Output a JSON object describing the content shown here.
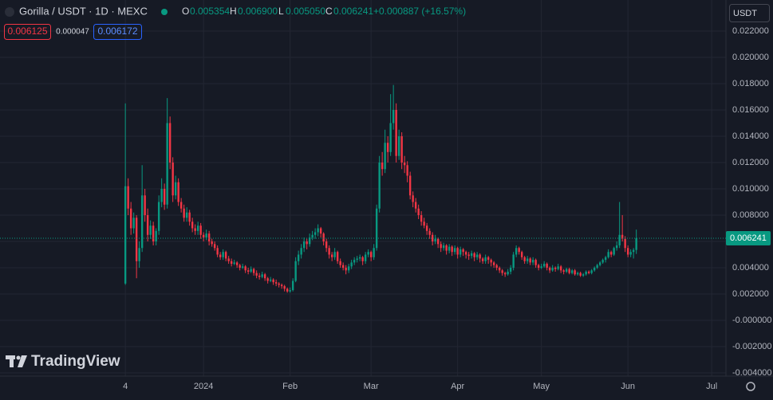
{
  "chart_data": {
    "type": "candlestick",
    "header": {
      "symbol": "Gorilla / USDT · 1D · MEXC",
      "o_label": "O",
      "o": "0.005354",
      "h_label": "H",
      "h": "0.006900",
      "l_label": "L",
      "l": "0.005050",
      "c_label": "C",
      "c": "0.006241",
      "change": "+0.000887 (+16.57%)"
    },
    "price_boxes": {
      "sell": "0.006125",
      "spread": "0.000047",
      "buy": "0.006172"
    },
    "currency": "USDT",
    "last_price_label": "0.006241",
    "branding": "TradingView",
    "colors": {
      "up": "#089981",
      "down": "#f23645"
    },
    "grid": true,
    "ylim": [
      -0.00424,
      0.02436
    ],
    "yticks": [
      {
        "value": 0.022,
        "label": "0.022000"
      },
      {
        "value": 0.02,
        "label": "0.020000"
      },
      {
        "value": 0.018,
        "label": "0.018000"
      },
      {
        "value": 0.016,
        "label": "0.016000"
      },
      {
        "value": 0.014,
        "label": "0.014000"
      },
      {
        "value": 0.012,
        "label": "0.012000"
      },
      {
        "value": 0.01,
        "label": "0.010000"
      },
      {
        "value": 0.008,
        "label": "0.008000"
      },
      {
        "value": 0.006,
        "label": "0.006000"
      },
      {
        "value": 0.004,
        "label": "0.004000"
      },
      {
        "value": 0.002,
        "label": "0.002000"
      },
      {
        "value": 0,
        "label": "-0.000000"
      },
      {
        "value": -0.002,
        "label": "-0.002000"
      },
      {
        "value": -0.004,
        "label": "-0.004000"
      }
    ],
    "xlim": [
      -44.9,
      215.1
    ],
    "xticks": [
      {
        "value": 0,
        "label": "4"
      },
      {
        "value": 28,
        "label": "2024"
      },
      {
        "value": 59,
        "label": "Feb"
      },
      {
        "value": 88,
        "label": "Mar"
      },
      {
        "value": 119,
        "label": "Apr"
      },
      {
        "value": 149,
        "label": "May"
      },
      {
        "value": 180,
        "label": "Jun"
      },
      {
        "value": 210,
        "label": "Jul"
      }
    ],
    "ohlc": [
      [
        0.0028,
        0.0165,
        0.0027,
        0.0102
      ],
      [
        0.0102,
        0.0108,
        0.008,
        0.0085
      ],
      [
        0.0085,
        0.009,
        0.0065,
        0.007
      ],
      [
        0.007,
        0.0082,
        0.0066,
        0.0078
      ],
      [
        0.0078,
        0.008,
        0.0032,
        0.0045
      ],
      [
        0.0045,
        0.006,
        0.004,
        0.0055
      ],
      [
        0.0055,
        0.0118,
        0.0052,
        0.0095
      ],
      [
        0.0095,
        0.01,
        0.0075,
        0.008
      ],
      [
        0.008,
        0.0085,
        0.006,
        0.0065
      ],
      [
        0.0065,
        0.0076,
        0.0062,
        0.0072
      ],
      [
        0.0072,
        0.0075,
        0.0057,
        0.006
      ],
      [
        0.006,
        0.007,
        0.0057,
        0.0068
      ],
      [
        0.0068,
        0.0095,
        0.0065,
        0.009
      ],
      [
        0.009,
        0.0108,
        0.0086,
        0.01
      ],
      [
        0.01,
        0.0104,
        0.0084,
        0.0088
      ],
      [
        0.0088,
        0.0169,
        0.0085,
        0.015
      ],
      [
        0.015,
        0.0155,
        0.0115,
        0.012
      ],
      [
        0.012,
        0.0124,
        0.009,
        0.0095
      ],
      [
        0.0095,
        0.011,
        0.0092,
        0.0105
      ],
      [
        0.0105,
        0.0108,
        0.0087,
        0.009
      ],
      [
        0.009,
        0.0093,
        0.0082,
        0.0085
      ],
      [
        0.0085,
        0.0088,
        0.0075,
        0.0078
      ],
      [
        0.0078,
        0.0086,
        0.0075,
        0.0082
      ],
      [
        0.0082,
        0.0084,
        0.0072,
        0.0075
      ],
      [
        0.0075,
        0.0078,
        0.0067,
        0.007
      ],
      [
        0.007,
        0.0073,
        0.0065,
        0.0068
      ],
      [
        0.0068,
        0.0075,
        0.0065,
        0.0072
      ],
      [
        0.0072,
        0.0074,
        0.0062,
        0.0065
      ],
      [
        0.0065,
        0.0067,
        0.006,
        0.0063
      ],
      [
        0.0063,
        0.0069,
        0.0061,
        0.0066
      ],
      [
        0.0066,
        0.0068,
        0.0057,
        0.006
      ],
      [
        0.006,
        0.0062,
        0.0056,
        0.0058
      ],
      [
        0.0058,
        0.006,
        0.0053,
        0.0055
      ],
      [
        0.0055,
        0.0057,
        0.0048,
        0.005
      ],
      [
        0.005,
        0.0052,
        0.0046,
        0.0048
      ],
      [
        0.0048,
        0.0054,
        0.0046,
        0.0052
      ],
      [
        0.0052,
        0.0053,
        0.0045,
        0.0047
      ],
      [
        0.0047,
        0.0049,
        0.0043,
        0.0045
      ],
      [
        0.0045,
        0.0047,
        0.0041,
        0.0043
      ],
      [
        0.0043,
        0.0046,
        0.0042,
        0.0044
      ],
      [
        0.0044,
        0.0045,
        0.004,
        0.0042
      ],
      [
        0.0042,
        0.0043,
        0.0038,
        0.004
      ],
      [
        0.004,
        0.0043,
        0.0039,
        0.0041
      ],
      [
        0.0041,
        0.0042,
        0.0036,
        0.0038
      ],
      [
        0.0038,
        0.004,
        0.0035,
        0.0037
      ],
      [
        0.0037,
        0.0041,
        0.0036,
        0.0039
      ],
      [
        0.0039,
        0.004,
        0.0034,
        0.0036
      ],
      [
        0.0036,
        0.0038,
        0.0032,
        0.0034
      ],
      [
        0.0034,
        0.0036,
        0.0031,
        0.0033
      ],
      [
        0.0033,
        0.0037,
        0.0032,
        0.0035
      ],
      [
        0.0035,
        0.0036,
        0.003,
        0.0032
      ],
      [
        0.0032,
        0.0033,
        0.0028,
        0.003
      ],
      [
        0.003,
        0.0033,
        0.0029,
        0.0031
      ],
      [
        0.0031,
        0.0032,
        0.0027,
        0.0029
      ],
      [
        0.0029,
        0.0031,
        0.0026,
        0.0028
      ],
      [
        0.0028,
        0.0029,
        0.0025,
        0.0027
      ],
      [
        0.0027,
        0.0028,
        0.0024,
        0.0026
      ],
      [
        0.0026,
        0.0027,
        0.0022,
        0.0024
      ],
      [
        0.0024,
        0.0025,
        0.0021,
        0.0022
      ],
      [
        0.0022,
        0.0025,
        0.0021,
        0.0023
      ],
      [
        0.0023,
        0.0032,
        0.0022,
        0.003
      ],
      [
        0.003,
        0.0048,
        0.0029,
        0.0045
      ],
      [
        0.0045,
        0.0053,
        0.0042,
        0.005
      ],
      [
        0.005,
        0.0058,
        0.0047,
        0.0055
      ],
      [
        0.0055,
        0.0063,
        0.0052,
        0.006
      ],
      [
        0.006,
        0.0062,
        0.0054,
        0.0058
      ],
      [
        0.0058,
        0.0066,
        0.0056,
        0.0063
      ],
      [
        0.0063,
        0.0068,
        0.0061,
        0.0065
      ],
      [
        0.0065,
        0.007,
        0.0062,
        0.0067
      ],
      [
        0.0067,
        0.0073,
        0.0064,
        0.007
      ],
      [
        0.007,
        0.0071,
        0.0063,
        0.0066
      ],
      [
        0.0066,
        0.0067,
        0.0057,
        0.006
      ],
      [
        0.006,
        0.0062,
        0.0052,
        0.0055
      ],
      [
        0.0055,
        0.0057,
        0.0047,
        0.005
      ],
      [
        0.005,
        0.0052,
        0.0045,
        0.0048
      ],
      [
        0.0048,
        0.0055,
        0.0046,
        0.0052
      ],
      [
        0.0052,
        0.0053,
        0.0043,
        0.0045
      ],
      [
        0.0045,
        0.0047,
        0.004,
        0.0042
      ],
      [
        0.0042,
        0.0044,
        0.0038,
        0.004
      ],
      [
        0.004,
        0.0042,
        0.0035,
        0.0038
      ],
      [
        0.0038,
        0.0043,
        0.0036,
        0.0041
      ],
      [
        0.0041,
        0.0046,
        0.0039,
        0.0044
      ],
      [
        0.0044,
        0.0048,
        0.0042,
        0.0046
      ],
      [
        0.0046,
        0.0049,
        0.0044,
        0.0047
      ],
      [
        0.0047,
        0.005,
        0.0045,
        0.0048
      ],
      [
        0.0048,
        0.0049,
        0.0042,
        0.0045
      ],
      [
        0.0045,
        0.0052,
        0.0043,
        0.005
      ],
      [
        0.005,
        0.0054,
        0.0048,
        0.0052
      ],
      [
        0.0052,
        0.0053,
        0.0045,
        0.0048
      ],
      [
        0.0048,
        0.0058,
        0.0046,
        0.0055
      ],
      [
        0.0055,
        0.0088,
        0.0053,
        0.0085
      ],
      [
        0.0085,
        0.0125,
        0.0082,
        0.012
      ],
      [
        0.012,
        0.0128,
        0.011,
        0.0115
      ],
      [
        0.0115,
        0.0145,
        0.0112,
        0.0135
      ],
      [
        0.0135,
        0.014,
        0.012,
        0.0128
      ],
      [
        0.0128,
        0.0172,
        0.0125,
        0.015
      ],
      [
        0.015,
        0.0179,
        0.0145,
        0.016
      ],
      [
        0.016,
        0.0165,
        0.012,
        0.0125
      ],
      [
        0.0125,
        0.0145,
        0.0122,
        0.014
      ],
      [
        0.014,
        0.0143,
        0.0115,
        0.012
      ],
      [
        0.012,
        0.0125,
        0.0112,
        0.0118
      ],
      [
        0.0118,
        0.0121,
        0.0105,
        0.011
      ],
      [
        0.011,
        0.0113,
        0.0092,
        0.0095
      ],
      [
        0.0095,
        0.0098,
        0.0086,
        0.009
      ],
      [
        0.009,
        0.0093,
        0.0082,
        0.0085
      ],
      [
        0.0085,
        0.0088,
        0.0077,
        0.008
      ],
      [
        0.008,
        0.0083,
        0.0072,
        0.0075
      ],
      [
        0.0075,
        0.0078,
        0.007,
        0.0072
      ],
      [
        0.0072,
        0.0074,
        0.0065,
        0.0068
      ],
      [
        0.0068,
        0.007,
        0.0062,
        0.0065
      ],
      [
        0.0065,
        0.0067,
        0.0057,
        0.006
      ],
      [
        0.006,
        0.0065,
        0.0058,
        0.0062
      ],
      [
        0.0062,
        0.0063,
        0.0055,
        0.0058
      ],
      [
        0.0058,
        0.006,
        0.0052,
        0.0055
      ],
      [
        0.0055,
        0.0059,
        0.0053,
        0.0057
      ],
      [
        0.0057,
        0.0058,
        0.005,
        0.0053
      ],
      [
        0.0053,
        0.0058,
        0.0051,
        0.0056
      ],
      [
        0.0056,
        0.0057,
        0.0049,
        0.0052
      ],
      [
        0.0052,
        0.0057,
        0.005,
        0.0055
      ],
      [
        0.0055,
        0.0056,
        0.0047,
        0.005
      ],
      [
        0.005,
        0.0056,
        0.0048,
        0.0054
      ],
      [
        0.0054,
        0.0055,
        0.0049,
        0.0052
      ],
      [
        0.0052,
        0.0053,
        0.0047,
        0.005
      ],
      [
        0.005,
        0.0052,
        0.0046,
        0.0049
      ],
      [
        0.0049,
        0.0053,
        0.0047,
        0.0051
      ],
      [
        0.0051,
        0.0052,
        0.0045,
        0.0048
      ],
      [
        0.0048,
        0.0052,
        0.0046,
        0.005
      ],
      [
        0.005,
        0.0051,
        0.0044,
        0.0047
      ],
      [
        0.0047,
        0.0048,
        0.0043,
        0.0045
      ],
      [
        0.0045,
        0.005,
        0.0043,
        0.0048
      ],
      [
        0.0048,
        0.0049,
        0.0043,
        0.0046
      ],
      [
        0.0046,
        0.0047,
        0.0041,
        0.0044
      ],
      [
        0.0044,
        0.0045,
        0.004,
        0.0042
      ],
      [
        0.0042,
        0.0043,
        0.0038,
        0.004
      ],
      [
        0.004,
        0.0041,
        0.0036,
        0.0038
      ],
      [
        0.0038,
        0.0039,
        0.0034,
        0.0036
      ],
      [
        0.0036,
        0.0037,
        0.0033,
        0.0035
      ],
      [
        0.0035,
        0.0039,
        0.0034,
        0.0037
      ],
      [
        0.0037,
        0.0042,
        0.0035,
        0.004
      ],
      [
        0.004,
        0.0052,
        0.0038,
        0.005
      ],
      [
        0.005,
        0.0057,
        0.0048,
        0.0055
      ],
      [
        0.0055,
        0.0056,
        0.005,
        0.0052
      ],
      [
        0.0052,
        0.0053,
        0.0046,
        0.0048
      ],
      [
        0.0048,
        0.0049,
        0.0043,
        0.0045
      ],
      [
        0.0045,
        0.0049,
        0.0043,
        0.0047
      ],
      [
        0.0047,
        0.0048,
        0.0042,
        0.0044
      ],
      [
        0.0044,
        0.0048,
        0.0042,
        0.0046
      ],
      [
        0.0046,
        0.0047,
        0.004,
        0.0042
      ],
      [
        0.0042,
        0.0043,
        0.0038,
        0.004
      ],
      [
        0.004,
        0.0043,
        0.0039,
        0.0041
      ],
      [
        0.0041,
        0.0045,
        0.004,
        0.0043
      ],
      [
        0.0043,
        0.0044,
        0.0038,
        0.004
      ],
      [
        0.004,
        0.0041,
        0.0036,
        0.0038
      ],
      [
        0.0038,
        0.0042,
        0.0037,
        0.004
      ],
      [
        0.004,
        0.0041,
        0.0037,
        0.0039
      ],
      [
        0.0039,
        0.0043,
        0.0038,
        0.0041
      ],
      [
        0.0041,
        0.0042,
        0.0036,
        0.0038
      ],
      [
        0.0038,
        0.0039,
        0.0035,
        0.0037
      ],
      [
        0.0037,
        0.004,
        0.0036,
        0.0039
      ],
      [
        0.0039,
        0.004,
        0.0035,
        0.0036
      ],
      [
        0.0036,
        0.0039,
        0.0035,
        0.0038
      ],
      [
        0.0038,
        0.0039,
        0.0034,
        0.0035
      ],
      [
        0.0035,
        0.0037,
        0.0034,
        0.0036
      ],
      [
        0.0036,
        0.0037,
        0.0033,
        0.0034
      ],
      [
        0.0034,
        0.0036,
        0.0033,
        0.0035
      ],
      [
        0.0035,
        0.0038,
        0.0034,
        0.0037
      ],
      [
        0.0037,
        0.0038,
        0.0035,
        0.0036
      ],
      [
        0.0036,
        0.0039,
        0.0035,
        0.0038
      ],
      [
        0.0038,
        0.0041,
        0.0037,
        0.004
      ],
      [
        0.004,
        0.0043,
        0.0039,
        0.0042
      ],
      [
        0.0042,
        0.0045,
        0.0041,
        0.0044
      ],
      [
        0.0044,
        0.0047,
        0.0043,
        0.0046
      ],
      [
        0.0046,
        0.0049,
        0.0044,
        0.0048
      ],
      [
        0.0048,
        0.0054,
        0.0047,
        0.0052
      ],
      [
        0.0052,
        0.0053,
        0.0048,
        0.005
      ],
      [
        0.005,
        0.0056,
        0.0049,
        0.0055
      ],
      [
        0.0055,
        0.006,
        0.0053,
        0.0057
      ],
      [
        0.0057,
        0.009,
        0.0055,
        0.0065
      ],
      [
        0.0065,
        0.008,
        0.006,
        0.0062
      ],
      [
        0.0062,
        0.0064,
        0.0052,
        0.0055
      ],
      [
        0.0055,
        0.0057,
        0.0048,
        0.005
      ],
      [
        0.005,
        0.0054,
        0.0048,
        0.0052
      ],
      [
        0.0052,
        0.0055,
        0.0047,
        0.005354
      ],
      [
        0.005354,
        0.0069,
        0.00505,
        0.006241
      ]
    ]
  }
}
